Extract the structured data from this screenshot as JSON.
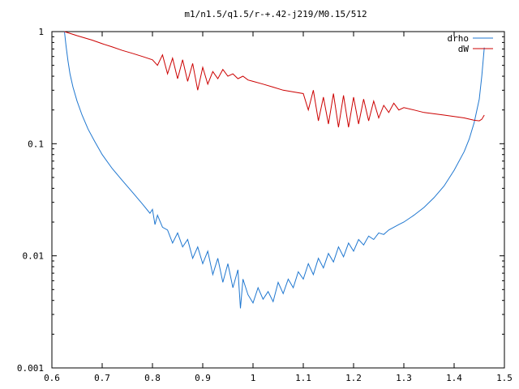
{
  "chart_data": {
    "type": "line",
    "title": "m1/n1.5/q1.5/r-+.42-j219/M0.15/512",
    "xlabel": "",
    "ylabel": "",
    "xlim": [
      0.6,
      1.5
    ],
    "ylim": [
      0.001,
      1
    ],
    "yscale": "log",
    "grid": false,
    "legend_position": "top-right",
    "x_ticks": [
      {
        "value": 0.6,
        "label": "0.6"
      },
      {
        "value": 0.7,
        "label": "0.7"
      },
      {
        "value": 0.8,
        "label": "0.8"
      },
      {
        "value": 0.9,
        "label": "0.9"
      },
      {
        "value": 1.0,
        "label": "1"
      },
      {
        "value": 1.1,
        "label": "1.1"
      },
      {
        "value": 1.2,
        "label": "1.2"
      },
      {
        "value": 1.3,
        "label": "1.3"
      },
      {
        "value": 1.4,
        "label": "1.4"
      },
      {
        "value": 1.5,
        "label": "1.5"
      }
    ],
    "y_ticks": [
      {
        "value": 1,
        "label": "1"
      },
      {
        "value": 0.1,
        "label": "0.1"
      },
      {
        "value": 0.01,
        "label": "0.01"
      },
      {
        "value": 0.001,
        "label": "0.001"
      }
    ],
    "series": [
      {
        "name": "drho",
        "color": "#1f77d0",
        "x": [
          0.625,
          0.628,
          0.632,
          0.636,
          0.642,
          0.65,
          0.66,
          0.672,
          0.685,
          0.7,
          0.72,
          0.74,
          0.76,
          0.78,
          0.795,
          0.8,
          0.805,
          0.81,
          0.82,
          0.83,
          0.84,
          0.85,
          0.86,
          0.87,
          0.88,
          0.89,
          0.9,
          0.91,
          0.92,
          0.93,
          0.94,
          0.95,
          0.96,
          0.97,
          0.975,
          0.98,
          0.99,
          1.0,
          1.01,
          1.02,
          1.03,
          1.04,
          1.05,
          1.06,
          1.07,
          1.08,
          1.09,
          1.1,
          1.11,
          1.12,
          1.13,
          1.14,
          1.15,
          1.16,
          1.17,
          1.18,
          1.19,
          1.2,
          1.21,
          1.22,
          1.23,
          1.24,
          1.25,
          1.26,
          1.27,
          1.28,
          1.29,
          1.3,
          1.32,
          1.34,
          1.36,
          1.38,
          1.4,
          1.42,
          1.43,
          1.44,
          1.45,
          1.455,
          1.46
        ],
        "values": [
          1.0,
          0.75,
          0.55,
          0.42,
          0.32,
          0.24,
          0.18,
          0.135,
          0.105,
          0.08,
          0.06,
          0.047,
          0.037,
          0.029,
          0.024,
          0.026,
          0.019,
          0.023,
          0.018,
          0.017,
          0.013,
          0.016,
          0.012,
          0.014,
          0.0095,
          0.012,
          0.0085,
          0.011,
          0.0068,
          0.0095,
          0.0058,
          0.0085,
          0.0052,
          0.0075,
          0.0034,
          0.0062,
          0.0045,
          0.0038,
          0.0052,
          0.0041,
          0.0048,
          0.0039,
          0.0058,
          0.0046,
          0.0062,
          0.0052,
          0.0072,
          0.0062,
          0.0085,
          0.0068,
          0.0095,
          0.0078,
          0.0105,
          0.0088,
          0.012,
          0.0098,
          0.013,
          0.011,
          0.014,
          0.0125,
          0.015,
          0.014,
          0.016,
          0.0155,
          0.017,
          0.018,
          0.019,
          0.02,
          0.023,
          0.027,
          0.033,
          0.042,
          0.058,
          0.085,
          0.11,
          0.155,
          0.25,
          0.4,
          0.72
        ]
      },
      {
        "name": "dW",
        "color": "#cc0000",
        "x": [
          0.625,
          0.65,
          0.68,
          0.7,
          0.72,
          0.74,
          0.76,
          0.78,
          0.8,
          0.81,
          0.82,
          0.83,
          0.84,
          0.85,
          0.86,
          0.87,
          0.88,
          0.89,
          0.9,
          0.91,
          0.92,
          0.93,
          0.94,
          0.95,
          0.96,
          0.97,
          0.98,
          0.99,
          1.0,
          1.02,
          1.04,
          1.06,
          1.08,
          1.1,
          1.11,
          1.12,
          1.13,
          1.14,
          1.15,
          1.16,
          1.17,
          1.18,
          1.19,
          1.2,
          1.21,
          1.22,
          1.23,
          1.24,
          1.25,
          1.26,
          1.27,
          1.28,
          1.29,
          1.3,
          1.32,
          1.34,
          1.36,
          1.38,
          1.4,
          1.42,
          1.44,
          1.45,
          1.455,
          1.46
        ],
        "values": [
          1.0,
          0.92,
          0.84,
          0.78,
          0.73,
          0.68,
          0.64,
          0.6,
          0.56,
          0.5,
          0.62,
          0.42,
          0.58,
          0.38,
          0.56,
          0.36,
          0.52,
          0.3,
          0.48,
          0.34,
          0.44,
          0.38,
          0.46,
          0.4,
          0.42,
          0.38,
          0.4,
          0.37,
          0.36,
          0.34,
          0.32,
          0.3,
          0.29,
          0.28,
          0.2,
          0.3,
          0.16,
          0.26,
          0.15,
          0.28,
          0.14,
          0.27,
          0.14,
          0.26,
          0.15,
          0.25,
          0.16,
          0.24,
          0.17,
          0.22,
          0.19,
          0.23,
          0.2,
          0.21,
          0.2,
          0.19,
          0.185,
          0.18,
          0.175,
          0.17,
          0.162,
          0.16,
          0.165,
          0.18
        ]
      }
    ]
  }
}
